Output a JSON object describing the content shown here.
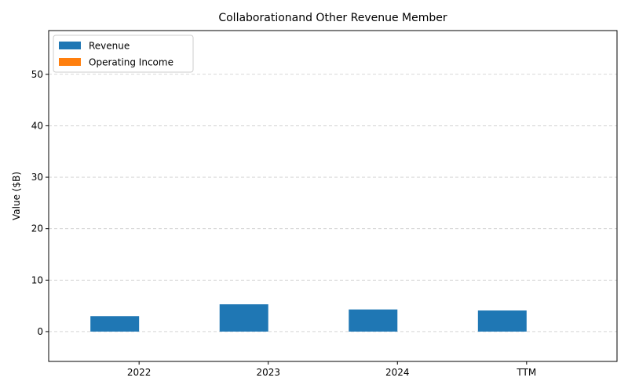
{
  "chart_data": {
    "type": "bar",
    "title": "Collaborationand Other Revenue Member",
    "xlabel": "",
    "ylabel": "Value ($B)",
    "categories": [
      "2022",
      "2023",
      "2024",
      "TTM"
    ],
    "series": [
      {
        "name": "Revenue",
        "values": [
          3.0,
          5.3,
          4.3,
          4.1
        ],
        "color": "#1f77b4"
      },
      {
        "name": "Operating Income",
        "values": [
          0,
          0,
          0,
          0
        ],
        "color": "#ff7f0e"
      }
    ],
    "ylim": [
      -5.8,
      58.5
    ],
    "yticks": [
      0,
      10,
      20,
      30,
      40,
      50
    ],
    "grid": "y-dashed",
    "legend": "top-left"
  }
}
